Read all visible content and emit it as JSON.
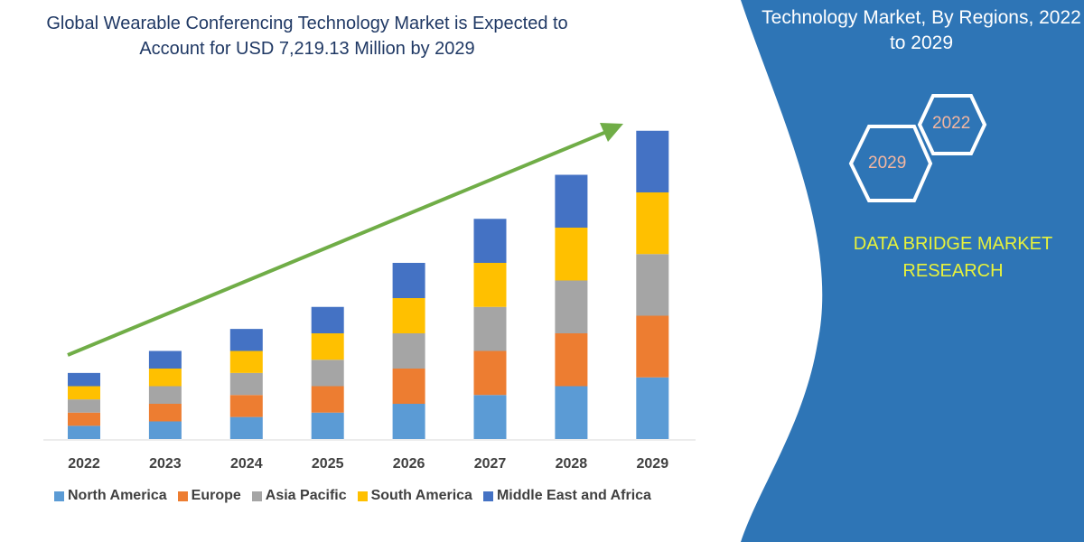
{
  "title": "Global Wearable Conferencing Technology Market is Expected to Account for USD 7,219.13 Million by 2029",
  "panel": {
    "title": "Technology Market, By Regions, 2022 to 2029",
    "hex_labels": [
      "2022",
      "2029"
    ],
    "brand": "DATA BRIDGE MARKET RESEARCH",
    "logo_text": "DATA BRIDGE",
    "background": "#2e75b6"
  },
  "chart_data": {
    "type": "bar",
    "stacked": true,
    "title": "Global Wearable Conferencing Technology Market is Expected to Account for USD 7,219.13 Million by 2029",
    "categories": [
      "2022",
      "2023",
      "2024",
      "2025",
      "2026",
      "2027",
      "2028",
      "2029"
    ],
    "series": [
      {
        "name": "North America",
        "color": "#5b9bd5",
        "values": [
          15,
          20,
          25,
          30,
          40,
          50,
          60,
          70
        ]
      },
      {
        "name": "Europe",
        "color": "#ed7d31",
        "values": [
          15,
          20,
          25,
          30,
          40,
          50,
          60,
          70
        ]
      },
      {
        "name": "Asia Pacific",
        "color": "#a5a5a5",
        "values": [
          15,
          20,
          25,
          30,
          40,
          50,
          60,
          70
        ]
      },
      {
        "name": "South America",
        "color": "#ffc000",
        "values": [
          15,
          20,
          25,
          30,
          40,
          50,
          60,
          70
        ]
      },
      {
        "name": "Middle East and Africa",
        "color": "#4472c4",
        "values": [
          15,
          20,
          25,
          30,
          40,
          50,
          60,
          70
        ]
      }
    ],
    "ylim": [
      0,
      360
    ],
    "y_axis_shown": false,
    "grid": false,
    "legend": "bottom",
    "trend_arrow_color": "#70ad47"
  }
}
